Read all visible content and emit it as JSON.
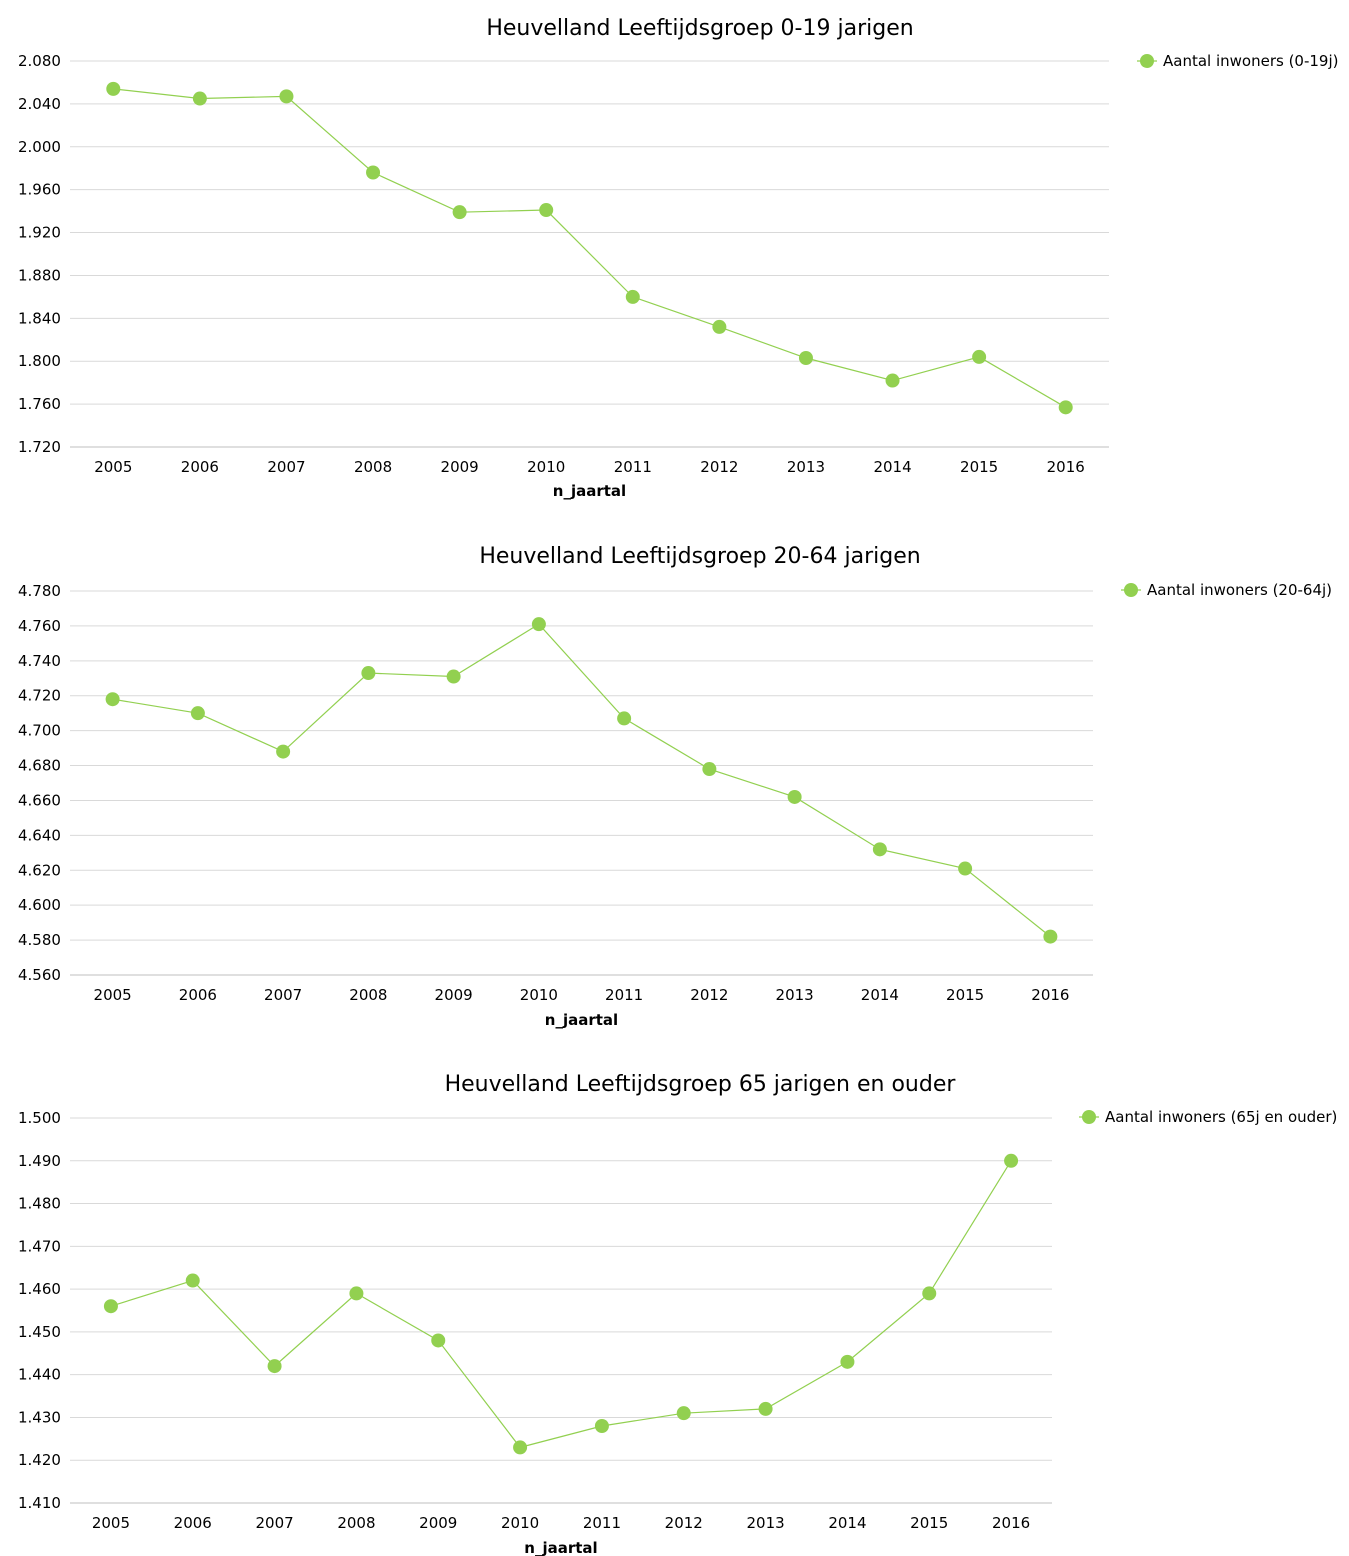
{
  "colors": {
    "series": "#92d050",
    "grid": "#d9d9d9",
    "axis": "#bfbfbf"
  },
  "chart_data": [
    {
      "type": "line",
      "title": "Heuvelland  Leeftijdsgroep 0-19 jarigen",
      "xlabel": "n_jaartal",
      "ylabel": "",
      "categories": [
        "2005",
        "2006",
        "2007",
        "2008",
        "2009",
        "2010",
        "2011",
        "2012",
        "2013",
        "2014",
        "2015",
        "2016"
      ],
      "ylim": [
        1720,
        2080
      ],
      "yticks": [
        1720,
        1760,
        1800,
        1840,
        1880,
        1920,
        1960,
        2000,
        2040,
        2080
      ],
      "ytick_labels": [
        "1.720",
        "1.760",
        "1.800",
        "1.840",
        "1.880",
        "1.920",
        "1.960",
        "2.000",
        "2.040",
        "2.080"
      ],
      "series": [
        {
          "name": "Aantal inwoners (0-19j)",
          "values": [
            2054,
            2045,
            2047,
            1976,
            1939,
            1941,
            1860,
            1832,
            1803,
            1782,
            1804,
            1757
          ]
        }
      ],
      "legend": "right",
      "grid": true
    },
    {
      "type": "line",
      "title": "Heuvelland  Leeftijdsgroep 20-64 jarigen",
      "xlabel": "n_jaartal",
      "ylabel": "",
      "categories": [
        "2005",
        "2006",
        "2007",
        "2008",
        "2009",
        "2010",
        "2011",
        "2012",
        "2013",
        "2014",
        "2015",
        "2016"
      ],
      "ylim": [
        4560,
        4780
      ],
      "yticks": [
        4560,
        4580,
        4600,
        4620,
        4640,
        4660,
        4680,
        4700,
        4720,
        4740,
        4760,
        4780
      ],
      "ytick_labels": [
        "4.560",
        "4.580",
        "4.600",
        "4.620",
        "4.640",
        "4.660",
        "4.680",
        "4.700",
        "4.720",
        "4.740",
        "4.760",
        "4.780"
      ],
      "series": [
        {
          "name": "Aantal inwoners  (20-64j)",
          "values": [
            4718,
            4710,
            4688,
            4733,
            4731,
            4761,
            4707,
            4678,
            4662,
            4632,
            4621,
            4582
          ]
        }
      ],
      "legend": "right",
      "grid": true
    },
    {
      "type": "line",
      "title": "Heuvelland  Leeftijdsgroep 65 jarigen en ouder",
      "xlabel": "n_jaartal",
      "ylabel": "",
      "categories": [
        "2005",
        "2006",
        "2007",
        "2008",
        "2009",
        "2010",
        "2011",
        "2012",
        "2013",
        "2014",
        "2015",
        "2016"
      ],
      "ylim": [
        1410,
        1500
      ],
      "yticks": [
        1410,
        1420,
        1430,
        1440,
        1450,
        1460,
        1470,
        1480,
        1490,
        1500
      ],
      "ytick_labels": [
        "1.410",
        "1.420",
        "1.430",
        "1.440",
        "1.450",
        "1.460",
        "1.470",
        "1.480",
        "1.490",
        "1.500"
      ],
      "series": [
        {
          "name": "Aantal inwoners (65j en ouder)",
          "values": [
            1456,
            1462,
            1442,
            1459,
            1448,
            1423,
            1428,
            1431,
            1432,
            1443,
            1459,
            1490
          ]
        }
      ],
      "legend": "right",
      "grid": true
    }
  ]
}
